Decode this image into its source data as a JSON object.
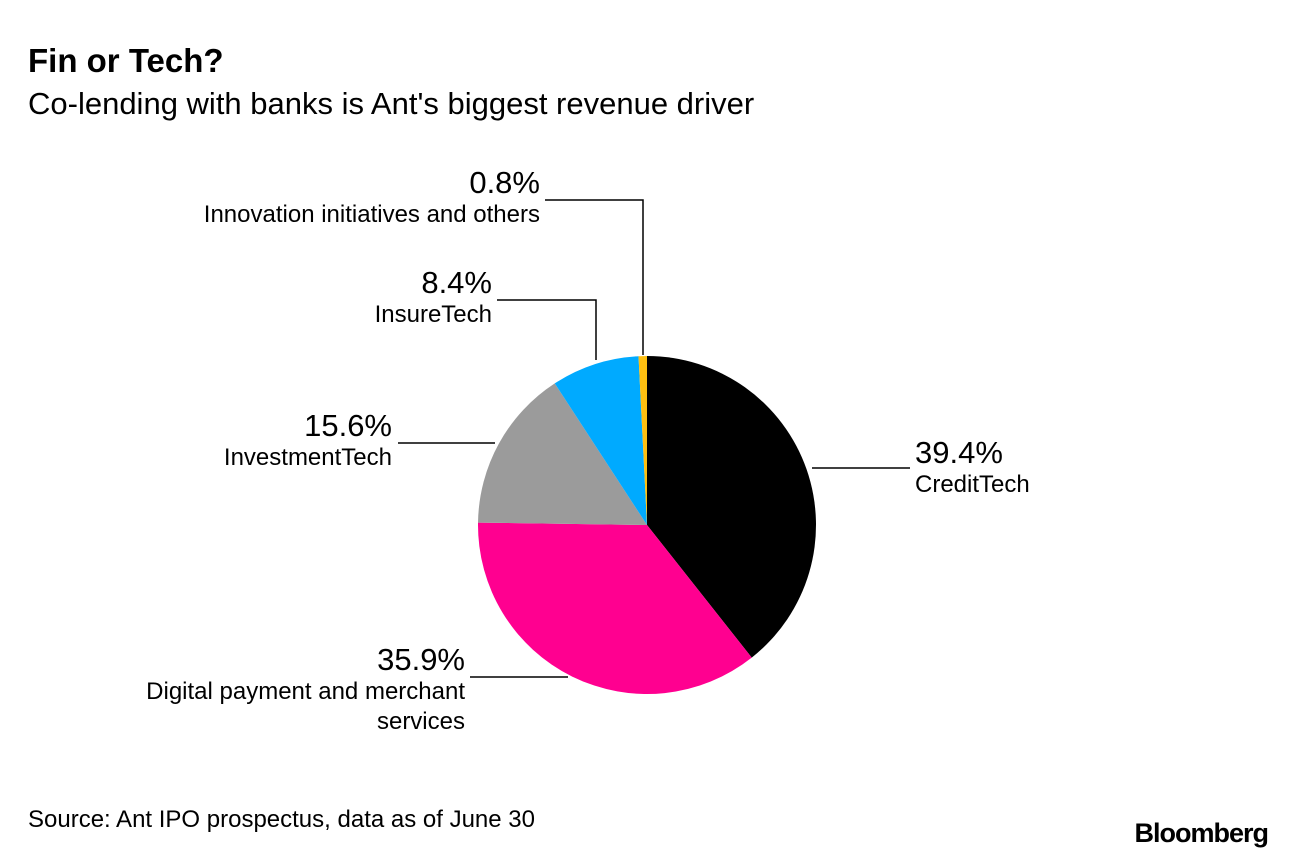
{
  "header": {
    "title": "Fin or Tech?",
    "subtitle": "Co-lending with banks is Ant's biggest revenue driver"
  },
  "footer": {
    "source": "Source: Ant IPO prospectus, data as of June 30",
    "logo": "Bloomberg"
  },
  "chart_data": {
    "type": "pie",
    "title": "Fin or Tech?",
    "subtitle": "Co-lending with banks is Ant's biggest revenue driver",
    "start": "top, clockwise",
    "slices": [
      {
        "label": "CreditTech",
        "value": 39.4,
        "display": "39.4%",
        "color": "#000000"
      },
      {
        "label": "Digital payment and merchant services",
        "value": 35.9,
        "display": "35.9%",
        "color": "#ff0090"
      },
      {
        "label": "InvestmentTech",
        "value": 15.6,
        "display": "15.6%",
        "color": "#9b9b9b"
      },
      {
        "label": "InsureTech",
        "value": 8.4,
        "display": "8.4%",
        "color": "#00aaff"
      },
      {
        "label": "Innovation initiatives and others",
        "value": 0.8,
        "display": "0.8%",
        "color": "#fdbf11"
      }
    ]
  }
}
